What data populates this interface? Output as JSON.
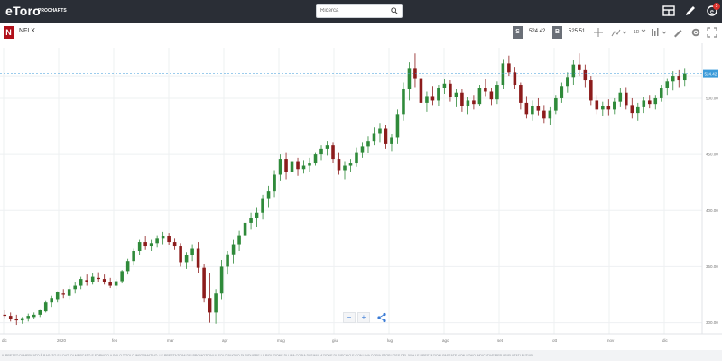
{
  "app": {
    "logo": "eToro",
    "logo_sub": "PROCHARTS"
  },
  "search": {
    "placeholder": "Ricerca"
  },
  "notifications": {
    "count": "5"
  },
  "instrument": {
    "logo_letter": "N",
    "symbol": "NFLX"
  },
  "trade": {
    "sell_label": "S",
    "sell_price": "524.42",
    "buy_label": "B",
    "buy_price": "525.51"
  },
  "toolbar": {
    "timeframe": "1D"
  },
  "chart": {
    "current_price_label": "524.42",
    "x_ticks": [
      "dic",
      "2020",
      "feb",
      "mar",
      "apr",
      "mag",
      "giu",
      "lug",
      "ago",
      "set",
      "ott",
      "nov",
      "dic"
    ],
    "y_ticks": [
      "300.00",
      "350.00",
      "400.00",
      "450.00",
      "500.00",
      "520.00"
    ],
    "colors": {
      "up": "#2f8a3a",
      "down": "#8c1c1c",
      "price_tag": "#3a9ad9",
      "grid": "#eef0f2"
    }
  },
  "disclaimer": "IL PREZZO DI MERCATO È BASATO SU DATI DI MERCATO E FORNITO A SOLO TITOLO INFORMATIVO. LE PRESTAZIONI DEI PROMOZIONI IL SOLO BUONO DI RIDURRE LA RIDUZIONE DI UNA COPIA DI SIMULAZIONE DI RISCHIO E CON UNA COPIA STOP LOSS DEL 50% LE PRESTAZIONI PASSATE NON SONO INDICATIVE PER I RISULTATI FUTURI",
  "chart_data": {
    "type": "candlestick",
    "categories": [
      "dic",
      "2020",
      "feb",
      "mar",
      "apr",
      "mag",
      "giu",
      "lug",
      "ago",
      "set",
      "ott",
      "nov",
      "dic"
    ],
    "ylim": [
      290,
      545
    ],
    "series": [
      {
        "values": [
          [
            307,
            311,
            304,
            306
          ],
          [
            306,
            309,
            301,
            303
          ],
          [
            303,
            307,
            298,
            302
          ],
          [
            302,
            305,
            299,
            304
          ],
          [
            304,
            308,
            301,
            306
          ],
          [
            305,
            309,
            303,
            307
          ],
          [
            307,
            312,
            305,
            311
          ],
          [
            310,
            320,
            309,
            318
          ],
          [
            318,
            324,
            314,
            322
          ],
          [
            321,
            328,
            318,
            327
          ],
          [
            326,
            330,
            322,
            325
          ],
          [
            324,
            333,
            321,
            330
          ],
          [
            330,
            336,
            326,
            333
          ],
          [
            333,
            341,
            330,
            339
          ],
          [
            338,
            343,
            333,
            336
          ],
          [
            336,
            344,
            334,
            341
          ],
          [
            340,
            345,
            336,
            339
          ],
          [
            339,
            343,
            334,
            336
          ],
          [
            336,
            340,
            331,
            333
          ],
          [
            333,
            339,
            330,
            337
          ],
          [
            337,
            347,
            335,
            346
          ],
          [
            346,
            357,
            343,
            355
          ],
          [
            355,
            366,
            351,
            364
          ],
          [
            364,
            374,
            360,
            372
          ],
          [
            372,
            377,
            365,
            368
          ],
          [
            368,
            374,
            364,
            371
          ],
          [
            371,
            378,
            367,
            375
          ],
          [
            375,
            381,
            370,
            377
          ],
          [
            377,
            380,
            369,
            372
          ],
          [
            372,
            375,
            365,
            368
          ],
          [
            368,
            371,
            350,
            354
          ],
          [
            354,
            363,
            348,
            360
          ],
          [
            360,
            370,
            355,
            366
          ],
          [
            366,
            372,
            344,
            349
          ],
          [
            349,
            352,
            318,
            322
          ],
          [
            322,
            344,
            300,
            309
          ],
          [
            309,
            330,
            299,
            326
          ],
          [
            326,
            356,
            321,
            350
          ],
          [
            350,
            364,
            343,
            361
          ],
          [
            361,
            374,
            353,
            370
          ],
          [
            370,
            382,
            364,
            378
          ],
          [
            378,
            392,
            372,
            389
          ],
          [
            389,
            398,
            383,
            393
          ],
          [
            393,
            403,
            385,
            398
          ],
          [
            398,
            414,
            392,
            411
          ],
          [
            411,
            422,
            403,
            417
          ],
          [
            417,
            436,
            412,
            432
          ],
          [
            432,
            450,
            426,
            446
          ],
          [
            446,
            452,
            428,
            434
          ],
          [
            434,
            448,
            430,
            444
          ],
          [
            444,
            447,
            431,
            437
          ],
          [
            437,
            445,
            433,
            440
          ],
          [
            440,
            447,
            434,
            442
          ],
          [
            442,
            452,
            440,
            450
          ],
          [
            450,
            458,
            445,
            455
          ],
          [
            455,
            462,
            449,
            458
          ],
          [
            458,
            461,
            442,
            446
          ],
          [
            446,
            452,
            432,
            436
          ],
          [
            436,
            444,
            428,
            440
          ],
          [
            440,
            446,
            434,
            442
          ],
          [
            442,
            456,
            439,
            452
          ],
          [
            452,
            461,
            447,
            457
          ],
          [
            457,
            466,
            451,
            462
          ],
          [
            462,
            474,
            458,
            469
          ],
          [
            469,
            478,
            461,
            473
          ],
          [
            473,
            476,
            455,
            459
          ],
          [
            459,
            468,
            453,
            465
          ],
          [
            465,
            490,
            459,
            486
          ],
          [
            486,
            514,
            480,
            508
          ],
          [
            508,
            532,
            498,
            527
          ],
          [
            527,
            540,
            510,
            518
          ],
          [
            518,
            524,
            491,
            496
          ],
          [
            496,
            506,
            488,
            502
          ],
          [
            502,
            511,
            494,
            498
          ],
          [
            498,
            512,
            493,
            509
          ],
          [
            509,
            517,
            504,
            513
          ],
          [
            513,
            516,
            497,
            501
          ],
          [
            501,
            508,
            492,
            505
          ],
          [
            505,
            508,
            488,
            493
          ],
          [
            493,
            501,
            486,
            498
          ],
          [
            498,
            503,
            490,
            495
          ],
          [
            495,
            512,
            493,
            509
          ],
          [
            509,
            517,
            502,
            506
          ],
          [
            506,
            509,
            494,
            499
          ],
          [
            499,
            515,
            495,
            512
          ],
          [
            512,
            535,
            508,
            531
          ],
          [
            531,
            538,
            520,
            523
          ],
          [
            523,
            528,
            508,
            512
          ],
          [
            512,
            514,
            490,
            496
          ],
          [
            496,
            502,
            482,
            486
          ],
          [
            486,
            498,
            480,
            493
          ],
          [
            493,
            500,
            485,
            489
          ],
          [
            489,
            494,
            478,
            482
          ],
          [
            482,
            492,
            476,
            489
          ],
          [
            489,
            503,
            486,
            500
          ],
          [
            500,
            514,
            496,
            511
          ],
          [
            511,
            523,
            505,
            519
          ],
          [
            519,
            534,
            512,
            530
          ],
          [
            530,
            540,
            520,
            525
          ],
          [
            525,
            530,
            510,
            516
          ],
          [
            516,
            520,
            494,
            498
          ],
          [
            498,
            503,
            486,
            490
          ],
          [
            490,
            497,
            484,
            493
          ],
          [
            493,
            499,
            485,
            490
          ],
          [
            490,
            500,
            486,
            497
          ],
          [
            497,
            509,
            492,
            505
          ],
          [
            505,
            510,
            490,
            494
          ],
          [
            494,
            500,
            482,
            487
          ],
          [
            487,
            496,
            480,
            492
          ],
          [
            492,
            501,
            487,
            498
          ],
          [
            498,
            503,
            491,
            495
          ],
          [
            495,
            503,
            490,
            500
          ],
          [
            500,
            512,
            497,
            509
          ],
          [
            509,
            518,
            503,
            515
          ],
          [
            515,
            524,
            507,
            520
          ],
          [
            520,
            525,
            510,
            516
          ],
          [
            516,
            527,
            511,
            522
          ]
        ]
      }
    ]
  }
}
